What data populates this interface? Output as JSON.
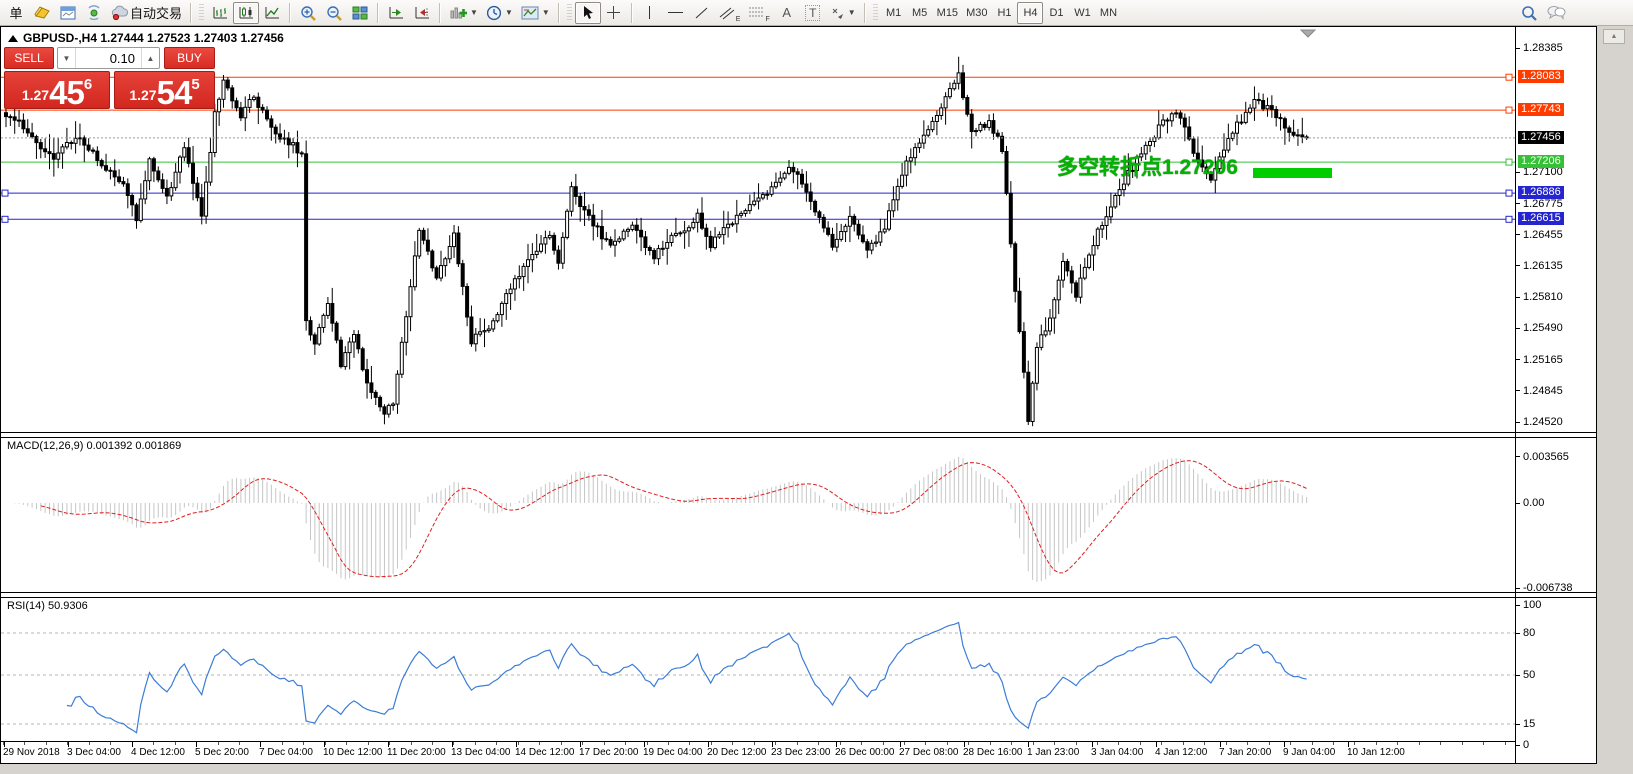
{
  "toolbar": {
    "new_order_label": "单",
    "autotrading_label": "自动交易",
    "tool_letters": {
      "channel": "E",
      "fibonacci": "F",
      "text": "A",
      "label": "T"
    },
    "timeframes": [
      "M1",
      "M5",
      "M15",
      "M30",
      "H1",
      "H4",
      "D1",
      "W1",
      "MN"
    ],
    "active_timeframe": "H4"
  },
  "window": {
    "title_line": "GBPUSD-,H4  1.27444 1.27523 1.27403 1.27456"
  },
  "trade_panel": {
    "sell_label": "SELL",
    "buy_label": "BUY",
    "volume": "0.10",
    "sell_price": {
      "prefix": "1.27",
      "big": "45",
      "sup": "6"
    },
    "buy_price": {
      "prefix": "1.27",
      "big": "54",
      "sup": "5"
    }
  },
  "annotation": {
    "text": "多空转折点1.27206",
    "color": "#00b400",
    "highlight_color": "#00cd00"
  },
  "price_axis": {
    "ticks": [
      "1.28385",
      "1.27100",
      "1.26775",
      "1.26455",
      "1.26135",
      "1.25810",
      "1.25490",
      "1.25165",
      "1.24845",
      "1.24520"
    ],
    "current_price": {
      "label": "1.27456",
      "value": 1.27456,
      "bg": "#000000"
    }
  },
  "macd": {
    "label": "MACD(12,26,9) 0.001392 0.001869",
    "axis_labels": [
      {
        "text": "0.003565",
        "value": 0.003565
      },
      {
        "text": "0.00",
        "value": 0
      },
      {
        "text": "-0.006738",
        "value": -0.006738
      }
    ],
    "histogram_color": "#c6c6c6",
    "signal_color": "#e02020",
    "fast": 12,
    "slow": 26,
    "signal": 9
  },
  "rsi": {
    "label": "RSI(14) 50.9306",
    "axis_labels": [
      {
        "text": "100",
        "value": 100
      },
      {
        "text": "80",
        "value": 80
      },
      {
        "text": "50",
        "value": 50
      },
      {
        "text": "15",
        "value": 15
      },
      {
        "text": "0",
        "value": 0
      }
    ],
    "levels": [
      80,
      50,
      15
    ],
    "line_color": "#3b7dd8",
    "period": 14
  },
  "dates": [
    "29 Nov 2018",
    "3 Dec 04:00",
    "4 Dec 12:00",
    "5 Dec 20:00",
    "7 Dec 04:00",
    "10 Dec 12:00",
    "11 Dec 20:00",
    "13 Dec 04:00",
    "14 Dec 12:00",
    "17 Dec 20:00",
    "19 Dec 04:00",
    "20 Dec 12:00",
    "23 Dec 23:00",
    "26 Dec 00:00",
    "27 Dec 08:00",
    "28 Dec 16:00",
    "1 Jan 23:00",
    "3 Jan 04:00",
    "4 Jan 12:00",
    "7 Jan 20:00",
    "9 Jan 04:00",
    "10 Jan 12:00"
  ],
  "chart_data": {
    "type": "candlestick",
    "symbol": "GBPUSD-",
    "timeframe": "H4",
    "visible_price_range": [
      1.2447,
      1.2859
    ],
    "n_candles": 300,
    "last_ohlc": {
      "open": 1.27444,
      "high": 1.27523,
      "low": 1.27403,
      "close": 1.27456
    },
    "horizontal_lines": [
      {
        "price": 1.28083,
        "label": "1.28083",
        "color": "#ff3c00"
      },
      {
        "price": 1.27743,
        "label": "1.27743",
        "color": "#ff3c00"
      },
      {
        "price": 1.27206,
        "label": "1.27206",
        "color": "#35c135"
      },
      {
        "price": 1.26886,
        "label": "1.26886",
        "color": "#2525cf",
        "left_handle": true
      },
      {
        "price": 1.26615,
        "label": "1.26615",
        "color": "#2525cf",
        "left_handle": true
      }
    ],
    "price_path_anchors": [
      [
        0,
        1.2769
      ],
      [
        5,
        1.2754
      ],
      [
        11,
        1.2722
      ],
      [
        16,
        1.2748
      ],
      [
        22,
        1.2718
      ],
      [
        27,
        1.2701
      ],
      [
        30,
        1.2664
      ],
      [
        33,
        1.2725
      ],
      [
        37,
        1.2684
      ],
      [
        41,
        1.2737
      ],
      [
        44,
        1.268
      ],
      [
        45,
        1.2663
      ],
      [
        48,
        1.277
      ],
      [
        50,
        1.2806
      ],
      [
        54,
        1.2769
      ],
      [
        57,
        1.2788
      ],
      [
        61,
        1.2753
      ],
      [
        66,
        1.2737
      ],
      [
        68,
        1.2731
      ],
      [
        69,
        1.2556
      ],
      [
        71,
        1.2533
      ],
      [
        74,
        1.2574
      ],
      [
        77,
        1.2513
      ],
      [
        80,
        1.2546
      ],
      [
        83,
        1.2489
      ],
      [
        87,
        1.2463
      ],
      [
        89,
        1.2473
      ],
      [
        91,
        1.2531
      ],
      [
        95,
        1.2651
      ],
      [
        99,
        1.2603
      ],
      [
        103,
        1.2644
      ],
      [
        107,
        1.2536
      ],
      [
        111,
        1.2549
      ],
      [
        116,
        1.2593
      ],
      [
        121,
        1.2626
      ],
      [
        125,
        1.2643
      ],
      [
        127,
        1.2613
      ],
      [
        130,
        1.2694
      ],
      [
        134,
        1.2663
      ],
      [
        139,
        1.2633
      ],
      [
        144,
        1.2656
      ],
      [
        149,
        1.2623
      ],
      [
        154,
        1.2646
      ],
      [
        159,
        1.2664
      ],
      [
        162,
        1.2636
      ],
      [
        166,
        1.2656
      ],
      [
        170,
        1.2669
      ],
      [
        175,
        1.2689
      ],
      [
        180,
        1.2719
      ],
      [
        185,
        1.2683
      ],
      [
        190,
        1.2633
      ],
      [
        194,
        1.2663
      ],
      [
        198,
        1.2626
      ],
      [
        202,
        1.2653
      ],
      [
        207,
        1.2722
      ],
      [
        213,
        1.2762
      ],
      [
        219,
        1.2812
      ],
      [
        222,
        1.2749
      ],
      [
        226,
        1.2763
      ],
      [
        229,
        1.2735
      ],
      [
        232,
        1.259
      ],
      [
        235,
        1.2456
      ],
      [
        237,
        1.253
      ],
      [
        240,
        1.256
      ],
      [
        243,
        1.2615
      ],
      [
        246,
        1.2585
      ],
      [
        251,
        1.265
      ],
      [
        256,
        1.2693
      ],
      [
        260,
        1.2723
      ],
      [
        265,
        1.2756
      ],
      [
        269,
        1.2773
      ],
      [
        273,
        1.2733
      ],
      [
        277,
        1.2706
      ],
      [
        282,
        1.2753
      ],
      [
        287,
        1.2783
      ],
      [
        291,
        1.2773
      ],
      [
        296,
        1.2749
      ],
      [
        299,
        1.27456
      ]
    ]
  }
}
